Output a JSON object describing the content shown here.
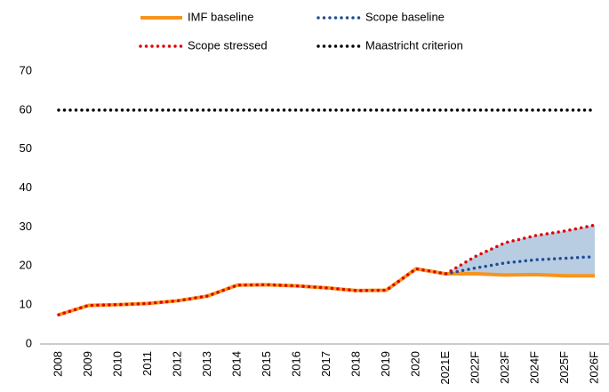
{
  "chart_data": {
    "type": "line",
    "categories": [
      "2008",
      "2009",
      "2010",
      "2011",
      "2012",
      "2013",
      "2014",
      "2015",
      "2016",
      "2017",
      "2018",
      "2019",
      "2020",
      "2021E",
      "2022F",
      "2023F",
      "2024F",
      "2025F",
      "2026F"
    ],
    "series": [
      {
        "name": "IMF baseline",
        "color": "#f7941d",
        "dash": "solid",
        "values": [
          7.5,
          9.9,
          10.1,
          10.4,
          11.1,
          12.3,
          15.1,
          15.2,
          14.9,
          14.4,
          13.7,
          13.8,
          19.3,
          18.0,
          18.0,
          17.7,
          17.8,
          17.5,
          17.5
        ]
      },
      {
        "name": "Scope baseline",
        "color": "#1f4e99",
        "dash": "dotted",
        "values": [
          null,
          null,
          null,
          null,
          null,
          null,
          null,
          null,
          null,
          null,
          null,
          null,
          null,
          18.0,
          19.5,
          20.8,
          21.6,
          22.0,
          22.4
        ]
      },
      {
        "name": "Scope stressed",
        "color": "#e00000",
        "dash": "dotted",
        "values": [
          7.5,
          9.9,
          10.1,
          10.4,
          11.1,
          12.3,
          15.1,
          15.2,
          14.9,
          14.4,
          13.7,
          13.8,
          19.3,
          18.0,
          22.5,
          26.0,
          27.8,
          29.0,
          30.5
        ]
      },
      {
        "name": "Maastricht criterion",
        "color": "#000000",
        "dash": "dotted",
        "values": [
          60,
          60,
          60,
          60,
          60,
          60,
          60,
          60,
          60,
          60,
          60,
          60,
          60,
          60,
          60,
          60,
          60,
          60,
          60
        ]
      }
    ],
    "band_color": "#b9cde2",
    "ylim": [
      0,
      70
    ],
    "yticks": [
      0,
      10,
      20,
      30,
      40,
      50,
      60,
      70
    ],
    "grid": false
  }
}
